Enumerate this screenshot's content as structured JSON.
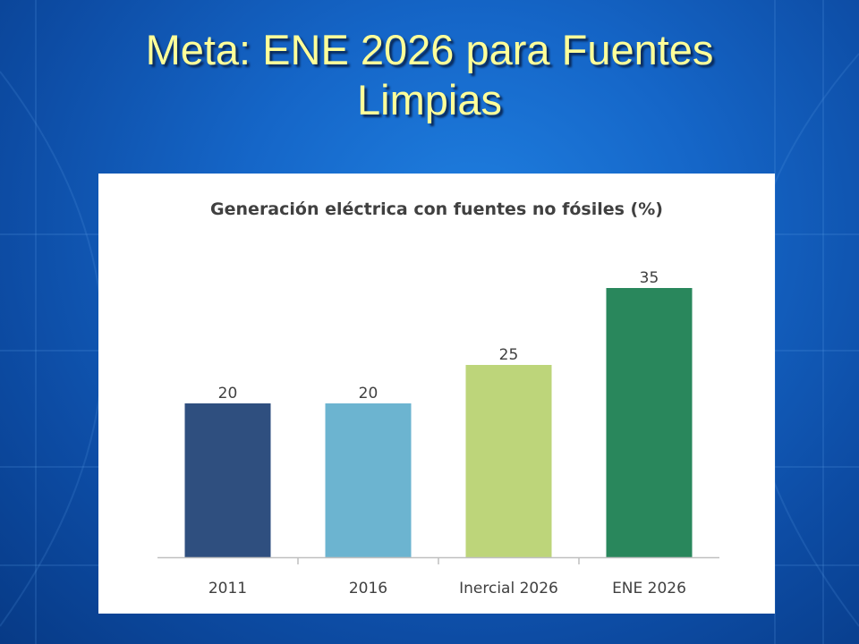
{
  "slide": {
    "title_line1": "Meta: ENE 2026 para Fuentes",
    "title_line2": "Limpias"
  },
  "chart_data": {
    "type": "bar",
    "title": "Generación eléctrica con fuentes no fósiles (%)",
    "categories": [
      "2011",
      "2016",
      "Inercial 2026",
      "ENE 2026"
    ],
    "values": [
      20,
      20,
      25,
      35
    ],
    "value_labels": [
      "20",
      "20",
      "25",
      "35"
    ],
    "colors": [
      "#2f4f7f",
      "#6cb4d0",
      "#bdd57a",
      "#29875c"
    ],
    "xlabel": "",
    "ylabel": "",
    "ylim": [
      0,
      40
    ],
    "grid": false,
    "legend": "none"
  }
}
